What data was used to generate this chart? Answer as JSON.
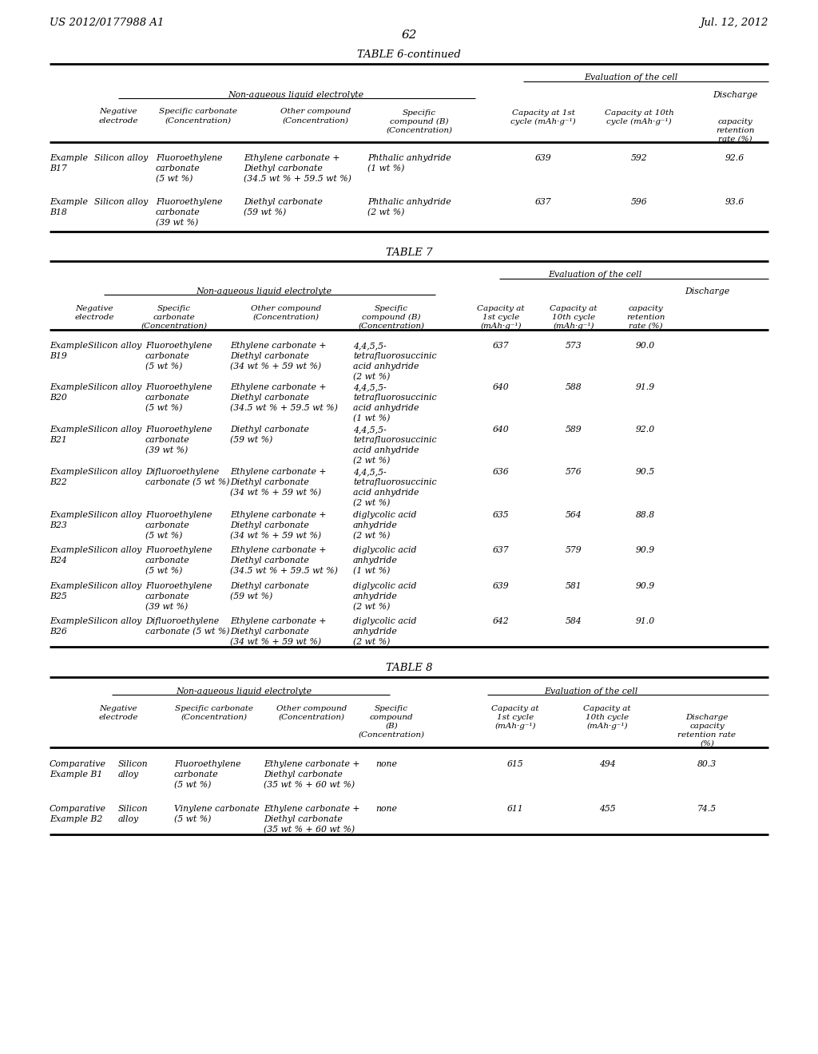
{
  "page_header_left": "US 2012/0177988 A1",
  "page_header_right": "Jul. 12, 2012",
  "page_number": "62",
  "background_color": "#ffffff"
}
